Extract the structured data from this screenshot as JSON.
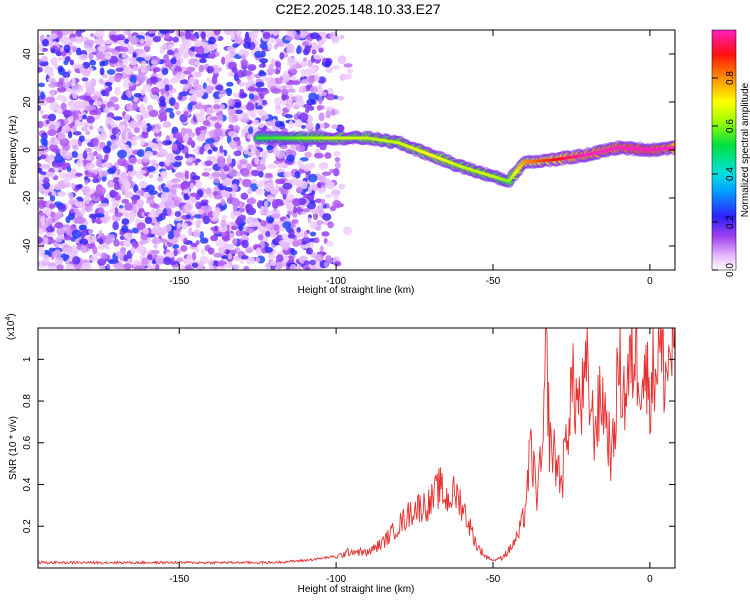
{
  "title": "C2E2.2025.148.10.33.E27",
  "colors": {
    "signal_ridge": "#0a0a0a",
    "noise_purple": "#8a2be2",
    "snr_line": "#e83030"
  },
  "chart_data": [
    {
      "type": "heatmap",
      "xlabel": "Height of straight line (km)",
      "ylabel": "Frequency (Hz)",
      "xlim": [
        -195,
        8
      ],
      "ylim": [
        -50,
        50
      ],
      "x_ticks": [
        -150,
        -100,
        -50,
        0
      ],
      "y_ticks": [
        -40,
        -20,
        0,
        20,
        40
      ],
      "colorbar": {
        "label": "Normalized spectral amplitude",
        "range": [
          0,
          1
        ],
        "ticks": [
          0.0,
          0.2,
          0.4,
          0.6,
          0.8
        ],
        "colormap": "white-magenta-purple-blue-cyan-green-yellow-orange-red-magenta"
      },
      "noise_region_x": [
        -195,
        -100
      ],
      "signal_ridge": {
        "x": [
          -125,
          -120,
          -110,
          -100,
          -90,
          -80,
          -70,
          -60,
          -50,
          -45,
          -40,
          -30,
          -20,
          -10,
          0,
          8
        ],
        "y": [
          5,
          5,
          5,
          5,
          5,
          3,
          -2,
          -7,
          -11,
          -13,
          -5,
          -4,
          -2,
          1,
          0,
          1
        ],
        "amplitude": [
          0.35,
          0.35,
          0.4,
          0.45,
          0.45,
          0.45,
          0.5,
          0.45,
          0.45,
          0.4,
          0.6,
          0.7,
          0.8,
          0.85,
          0.9,
          0.8
        ]
      }
    },
    {
      "type": "line",
      "xlabel": "Height of straight line (km)",
      "ylabel": "SNR (10 * v/v)",
      "y_multiplier": "(x10",
      "y_multiplier_exp": "4",
      "xlim": [
        -195,
        8
      ],
      "ylim": [
        0,
        1.15
      ],
      "x_ticks": [
        -150,
        -100,
        -50,
        0
      ],
      "y_ticks": [
        0.2,
        0.4,
        0.6,
        0.8,
        1.0
      ],
      "series": [
        {
          "x": [
            -195,
            -180,
            -160,
            -140,
            -120,
            -110,
            -100,
            -95,
            -90,
            -85,
            -80,
            -75,
            -70,
            -67,
            -65,
            -62,
            -60,
            -57,
            -55,
            -52,
            -50,
            -48,
            -45,
            -42,
            -40,
            -38,
            -36,
            -34,
            -33,
            -32,
            -30,
            -28,
            -25,
            -22,
            -20,
            -18,
            -15,
            -12,
            -10,
            -8,
            -5,
            -3,
            0,
            3,
            5,
            8
          ],
          "y": [
            0.02,
            0.02,
            0.02,
            0.02,
            0.02,
            0.03,
            0.05,
            0.08,
            0.07,
            0.12,
            0.2,
            0.28,
            0.3,
            0.38,
            0.32,
            0.35,
            0.3,
            0.18,
            0.1,
            0.05,
            0.03,
            0.04,
            0.08,
            0.15,
            0.25,
            0.55,
            0.35,
            0.55,
            1.05,
            0.6,
            0.5,
            0.4,
            0.85,
            0.75,
            0.9,
            0.65,
            0.8,
            0.5,
            0.95,
            0.8,
            1.02,
            0.95,
            0.85,
            1.03,
            0.9,
            1.1
          ]
        }
      ]
    }
  ]
}
